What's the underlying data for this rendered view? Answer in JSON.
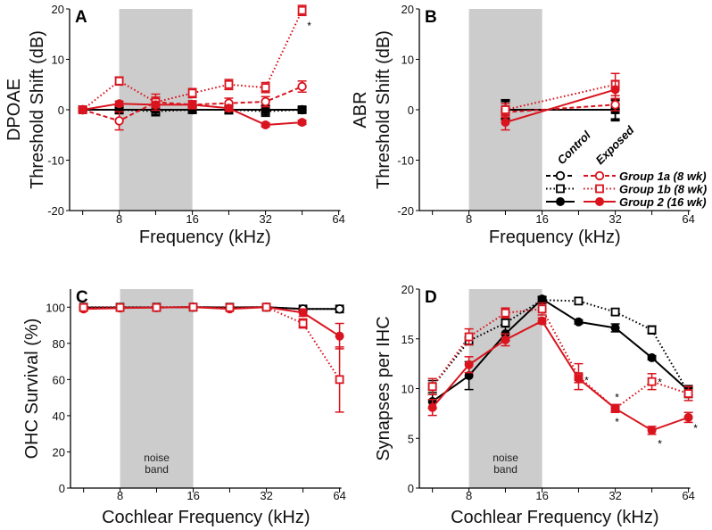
{
  "colors": {
    "control": "#000000",
    "exposed": "#d9141e",
    "noise_band": "#cccccc"
  },
  "legend": {
    "header_control": "Control",
    "header_exposed": "Exposed",
    "entries": [
      {
        "label": "Group 1a (8 wk)",
        "line": "dashed",
        "marker": "open-circle"
      },
      {
        "label": "Group 1b (8 wk)",
        "line": "dotted",
        "marker": "open-square"
      },
      {
        "label": "Group 2 (16 wk)",
        "line": "solid",
        "marker": "filled-circle"
      }
    ]
  },
  "chart_data": [
    {
      "panel": "A",
      "type": "line",
      "ylabel": [
        "DPOAE",
        "Threshold Shift (dB)"
      ],
      "xlabel": "Frequency (kHz)",
      "xscale": "log2",
      "xlim": [
        5,
        64
      ],
      "xticks": [
        8,
        16,
        32,
        64
      ],
      "minor_xticks": [
        5.66,
        11.3,
        22.6,
        45.25
      ],
      "ylim": [
        -20,
        20
      ],
      "yticks": [
        -20,
        -10,
        0,
        10,
        20
      ],
      "noise_band": [
        8,
        16
      ],
      "noise_label": "",
      "x": [
        5.66,
        8,
        11.3,
        16,
        22.6,
        32,
        45.25
      ],
      "series": [
        {
          "name": "Control Group 1a",
          "group": "control",
          "line": "dashed",
          "marker": "open-circle",
          "values": [
            0,
            0,
            0,
            0,
            0,
            0,
            0
          ],
          "err": [
            0.4,
            0.6,
            0.8,
            0.6,
            0.8,
            0.9,
            0.5
          ]
        },
        {
          "name": "Control Group 1b",
          "group": "control",
          "line": "dotted",
          "marker": "open-square",
          "values": [
            0,
            0,
            -0.3,
            0,
            0,
            -0.3,
            0
          ],
          "err": [
            0.4,
            0.8,
            0.9,
            0.7,
            0.8,
            1,
            0.6
          ]
        },
        {
          "name": "Control Group 2",
          "group": "control",
          "line": "solid",
          "marker": "filled-circle",
          "values": [
            0,
            0,
            0,
            0,
            0,
            0,
            0
          ],
          "err": [
            0.3,
            0.5,
            0.6,
            0.5,
            0.6,
            0.7,
            0.4
          ]
        },
        {
          "name": "Exposed Group 1a",
          "group": "exposed",
          "line": "dashed",
          "marker": "open-circle",
          "values": [
            0,
            -2.2,
            1.5,
            1,
            1.3,
            1.6,
            4.6
          ],
          "err": [
            0.3,
            1.8,
            1,
            0.8,
            1,
            1,
            1.1
          ]
        },
        {
          "name": "Exposed Group 1b",
          "group": "exposed",
          "line": "dotted",
          "marker": "open-square",
          "values": [
            0,
            5.7,
            1.5,
            3.3,
            5,
            4.4,
            19.7
          ],
          "err": [
            0.3,
            0.8,
            1.6,
            0.9,
            1,
            1,
            1
          ]
        },
        {
          "name": "Exposed Group 2",
          "group": "exposed",
          "line": "solid",
          "marker": "filled-circle",
          "values": [
            0,
            1.2,
            1,
            1,
            0.3,
            -3,
            -2.5
          ],
          "err": [
            0.3,
            0.5,
            0.6,
            0.6,
            0.6,
            0.4,
            0.4
          ]
        }
      ],
      "annotations": [
        {
          "text": "*",
          "x": 45.25,
          "y": 17,
          "dx": 8
        }
      ]
    },
    {
      "panel": "B",
      "type": "line",
      "ylabel": [
        "ABR",
        "Threshold Shift (dB)"
      ],
      "xlabel": "Frequency (kHz)",
      "xscale": "log2",
      "xlim": [
        5,
        64
      ],
      "xticks": [
        8,
        16,
        32,
        64
      ],
      "minor_xticks": [
        5.66,
        11.3,
        22.6,
        45.25
      ],
      "ylim": [
        -20,
        20
      ],
      "yticks": [
        -20,
        -10,
        0,
        10,
        20
      ],
      "noise_band": [
        8,
        16
      ],
      "noise_label": "",
      "x": [
        11.3,
        32
      ],
      "series": [
        {
          "name": "Control Group 1a",
          "group": "control",
          "line": "dashed",
          "marker": "open-circle",
          "values": [
            0,
            0
          ],
          "err": [
            1.8,
            2
          ]
        },
        {
          "name": "Control Group 1b",
          "group": "control",
          "line": "dotted",
          "marker": "open-square",
          "values": [
            0,
            0
          ],
          "err": [
            2,
            2.2
          ]
        },
        {
          "name": "Control Group 2",
          "group": "control",
          "line": "solid",
          "marker": "filled-circle",
          "values": [
            0,
            0
          ],
          "err": [
            1.6,
            1.8
          ]
        },
        {
          "name": "Exposed Group 1a",
          "group": "exposed",
          "line": "dashed",
          "marker": "open-circle",
          "values": [
            -0.5,
            1
          ],
          "err": [
            1,
            1.2
          ]
        },
        {
          "name": "Exposed Group 1b",
          "group": "exposed",
          "line": "dotted",
          "marker": "open-square",
          "values": [
            0,
            5
          ],
          "err": [
            1.2,
            2.2
          ]
        },
        {
          "name": "Exposed Group 2",
          "group": "exposed",
          "line": "solid",
          "marker": "filled-circle",
          "values": [
            -2.5,
            4
          ],
          "err": [
            1.5,
            1.8
          ]
        }
      ],
      "annotations": []
    },
    {
      "panel": "C",
      "type": "line",
      "ylabel": [
        "OHC Survival (%)"
      ],
      "xlabel": "Cochlear Frequency (kHz)",
      "xscale": "log2",
      "xlim": [
        5,
        64
      ],
      "xticks": [
        8,
        16,
        32,
        64
      ],
      "minor_xticks": [
        5.66,
        11.3,
        22.6,
        45.25
      ],
      "ylim": [
        0,
        110
      ],
      "yticks": [
        0,
        20,
        40,
        60,
        80,
        100
      ],
      "noise_band": [
        8,
        16
      ],
      "noise_label": "noise band",
      "x": [
        5.66,
        8,
        11.3,
        16,
        22.6,
        32,
        45.25,
        64
      ],
      "series": [
        {
          "name": "Control Group 1b",
          "group": "control",
          "line": "dotted",
          "marker": "open-square",
          "values": [
            100,
            100,
            100,
            100,
            100,
            100,
            99,
            99
          ],
          "err": [
            0,
            0,
            0,
            0,
            0,
            0,
            0.5,
            0.5
          ]
        },
        {
          "name": "Control Group 2",
          "group": "control",
          "line": "solid",
          "marker": "open-circle",
          "values": [
            99.8,
            99.8,
            99.8,
            100,
            99.8,
            100,
            99,
            99
          ],
          "err": [
            0,
            0,
            0,
            0,
            0,
            0,
            0.5,
            0.5
          ]
        },
        {
          "name": "Exposed Group 2",
          "group": "exposed",
          "line": "solid",
          "marker": "filled-circle",
          "values": [
            99,
            99.5,
            99.8,
            100,
            99,
            100,
            97,
            84
          ],
          "err": [
            0.5,
            0.5,
            0.3,
            0,
            0.5,
            0,
            2,
            7
          ]
        },
        {
          "name": "Exposed Group 1b",
          "group": "exposed",
          "line": "dotted",
          "marker": "open-square",
          "values": [
            99.8,
            99.8,
            99.8,
            100,
            99.8,
            100,
            91,
            60
          ],
          "err": [
            0.3,
            0.3,
            0.3,
            0,
            0.3,
            0,
            2.5,
            18
          ]
        }
      ],
      "annotations": []
    },
    {
      "panel": "D",
      "type": "line",
      "ylabel": [
        "Synapses per IHC"
      ],
      "xlabel": "Cochlear Frequency (kHz)",
      "xscale": "log2",
      "xlim": [
        5,
        64
      ],
      "xticks": [
        8,
        16,
        32,
        64
      ],
      "minor_xticks": [
        5.66,
        11.3,
        22.6,
        45.25
      ],
      "ylim": [
        0,
        20
      ],
      "yticks": [
        0,
        5,
        10,
        15,
        20
      ],
      "noise_band": [
        8,
        16
      ],
      "noise_label": "noise band",
      "x": [
        5.66,
        8,
        11.3,
        16,
        22.6,
        32,
        45.25,
        64
      ],
      "series": [
        {
          "name": "Control Group 1b",
          "group": "control",
          "line": "dotted",
          "marker": "open-square",
          "values": [
            10.2,
            14.8,
            16.6,
            18.9,
            18.8,
            17.7,
            15.9,
            9.6
          ],
          "err": [
            0.6,
            0.4,
            0.4,
            0.3,
            0.3,
            0.3,
            0.4,
            0.5
          ]
        },
        {
          "name": "Control Group 2",
          "group": "control",
          "line": "solid",
          "marker": "filled-circle",
          "values": [
            8.7,
            11.3,
            15.5,
            19,
            16.7,
            16.1,
            13.1,
            9.8
          ],
          "err": [
            0.7,
            1.4,
            0.7,
            0.2,
            0.2,
            0.4,
            0.2,
            0.5
          ]
        },
        {
          "name": "Exposed Group 1b",
          "group": "exposed",
          "line": "dotted",
          "marker": "open-square",
          "values": [
            10.2,
            15.2,
            17.6,
            18,
            11.2,
            8,
            10.7,
            9.5
          ],
          "err": [
            0.8,
            0.8,
            0.5,
            0.6,
            1.3,
            0.4,
            0.8,
            0.7
          ]
        },
        {
          "name": "Exposed Group 2",
          "group": "exposed",
          "line": "solid",
          "marker": "filled-circle",
          "values": [
            8.1,
            12.4,
            14.9,
            16.8,
            11,
            8,
            5.8,
            7.1
          ],
          "err": [
            0.8,
            0.8,
            0.6,
            0.3,
            0.4,
            0.3,
            0.4,
            0.5
          ]
        }
      ],
      "annotations": [
        {
          "text": "*",
          "x": 22.6,
          "y": 11,
          "dx": 9
        },
        {
          "text": "*",
          "x": 32,
          "y": 9.3,
          "dx": 2
        },
        {
          "text": "*",
          "x": 32,
          "y": 6.8,
          "dx": 2
        },
        {
          "text": "*",
          "x": 45.25,
          "y": 10.8,
          "dx": 9
        },
        {
          "text": "*",
          "x": 45.25,
          "y": 4.6,
          "dx": 9
        },
        {
          "text": "*",
          "x": 64,
          "y": 6.2,
          "dx": 8
        }
      ]
    }
  ]
}
